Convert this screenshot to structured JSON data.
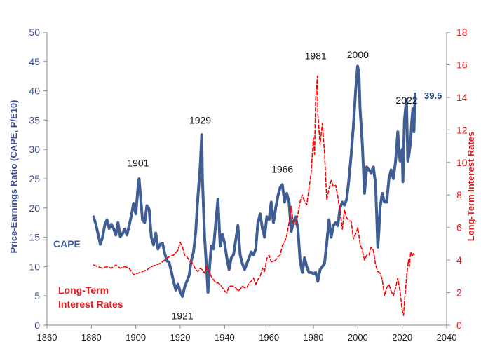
{
  "colors": {
    "cape": "#3f5e96",
    "rates": "#ff0000",
    "left_axis_text": "#3a4d99",
    "right_axis_text": "#e41a1c",
    "axis_line": "#888888",
    "last_value": "#1f3b73"
  },
  "chart_data": {
    "type": "line",
    "title": "",
    "xlabel": "",
    "ylabel_left": "Price-Earnings Ratio (CAPE, P/E10)",
    "ylabel_right": "Long-Term Interest Rates",
    "xlim": [
      1860,
      2040
    ],
    "ylim_left": [
      0,
      50
    ],
    "ylim_right": [
      0,
      18
    ],
    "grid": false,
    "x_ticks": [
      "1860",
      "1880",
      "1900",
      "1920",
      "1940",
      "1960",
      "1980",
      "2000",
      "2020",
      "2040"
    ],
    "y_left_ticks": [
      "0",
      "5",
      "10",
      "15",
      "20",
      "25",
      "30",
      "35",
      "40",
      "45",
      "50"
    ],
    "y_right_ticks": [
      "0",
      "2",
      "4",
      "6",
      "8",
      "10",
      "12",
      "14",
      "16",
      "18"
    ],
    "legend": {
      "cape_label": "CAPE",
      "rates_label_line1": "Long-Term",
      "rates_label_line2": "Interest Rates"
    },
    "annotations": [
      {
        "text": "1901",
        "x": 1901,
        "y": 27.1
      },
      {
        "text": "1929",
        "x": 1929,
        "y": 34.4
      },
      {
        "text": "1966",
        "x": 1966,
        "y": 26.0
      },
      {
        "text": "1981",
        "x": 1981,
        "y": 45.4
      },
      {
        "text": "2000",
        "x": 2000,
        "y": 45.6
      },
      {
        "text": "2022",
        "x": 2022,
        "y": 37.8
      },
      {
        "text": "1921",
        "x": 1921,
        "y": 1.0
      }
    ],
    "last_value_label": "39.5",
    "series": [
      {
        "name": "CAPE",
        "axis": "left",
        "points": [
          [
            1881,
            18.5
          ],
          [
            1882,
            17.2
          ],
          [
            1883,
            15.6
          ],
          [
            1884,
            13.8
          ],
          [
            1885,
            15.0
          ],
          [
            1886,
            17.0
          ],
          [
            1887,
            18.0
          ],
          [
            1888,
            16.5
          ],
          [
            1889,
            17.2
          ],
          [
            1890,
            16.5
          ],
          [
            1891,
            15.4
          ],
          [
            1892,
            17.5
          ],
          [
            1893,
            15.1
          ],
          [
            1894,
            15.6
          ],
          [
            1895,
            16.4
          ],
          [
            1896,
            15.4
          ],
          [
            1897,
            17.0
          ],
          [
            1898,
            18.7
          ],
          [
            1899,
            20.8
          ],
          [
            1900,
            19.0
          ],
          [
            1901,
            23.5
          ],
          [
            1901.5,
            25.0
          ],
          [
            1902,
            22.6
          ],
          [
            1903,
            18.0
          ],
          [
            1904,
            17.5
          ],
          [
            1905,
            20.4
          ],
          [
            1906,
            19.8
          ],
          [
            1907,
            15.0
          ],
          [
            1908,
            13.7
          ],
          [
            1909,
            15.7
          ],
          [
            1910,
            13.0
          ],
          [
            1911,
            13.8
          ],
          [
            1912,
            14.0
          ],
          [
            1913,
            12.3
          ],
          [
            1914,
            11.0
          ],
          [
            1915,
            10.7
          ],
          [
            1916,
            9.2
          ],
          [
            1917,
            7.5
          ],
          [
            1918,
            6.0
          ],
          [
            1919,
            7.0
          ],
          [
            1920,
            5.7
          ],
          [
            1921,
            4.9
          ],
          [
            1922,
            6.5
          ],
          [
            1923,
            7.5
          ],
          [
            1924,
            8.5
          ],
          [
            1925,
            11.0
          ],
          [
            1926,
            12.5
          ],
          [
            1927,
            16.0
          ],
          [
            1928,
            22.0
          ],
          [
            1929,
            27.0
          ],
          [
            1929.7,
            32.5
          ],
          [
            1930,
            25.0
          ],
          [
            1931,
            15.0
          ],
          [
            1932,
            9.0
          ],
          [
            1932.5,
            5.6
          ],
          [
            1933,
            8.8
          ],
          [
            1934,
            13.5
          ],
          [
            1935,
            13.0
          ],
          [
            1936,
            17.5
          ],
          [
            1937,
            21.5
          ],
          [
            1938,
            13.5
          ],
          [
            1939,
            15.5
          ],
          [
            1940,
            14.0
          ],
          [
            1941,
            11.5
          ],
          [
            1942,
            9.5
          ],
          [
            1943,
            11.5
          ],
          [
            1944,
            12.0
          ],
          [
            1945,
            14.5
          ],
          [
            1946,
            17.0
          ],
          [
            1947,
            12.0
          ],
          [
            1948,
            10.5
          ],
          [
            1949,
            9.5
          ],
          [
            1950,
            10.5
          ],
          [
            1951,
            11.5
          ],
          [
            1952,
            12.5
          ],
          [
            1953,
            12.0
          ],
          [
            1954,
            13.0
          ],
          [
            1955,
            17.5
          ],
          [
            1956,
            19.0
          ],
          [
            1957,
            16.5
          ],
          [
            1958,
            15.0
          ],
          [
            1959,
            18.5
          ],
          [
            1960,
            18.0
          ],
          [
            1961,
            21.0
          ],
          [
            1962,
            17.5
          ],
          [
            1963,
            20.0
          ],
          [
            1964,
            22.0
          ],
          [
            1965,
            23.5
          ],
          [
            1966,
            24.0
          ],
          [
            1967,
            21.0
          ],
          [
            1968,
            22.5
          ],
          [
            1969,
            21.0
          ],
          [
            1970,
            16.0
          ],
          [
            1971,
            17.5
          ],
          [
            1972,
            18.5
          ],
          [
            1973,
            16.5
          ],
          [
            1974,
            11.0
          ],
          [
            1975,
            9.0
          ],
          [
            1976,
            11.5
          ],
          [
            1977,
            10.0
          ],
          [
            1978,
            9.0
          ],
          [
            1979,
            9.0
          ],
          [
            1980,
            8.8
          ],
          [
            1981,
            9.0
          ],
          [
            1982,
            7.5
          ],
          [
            1983,
            9.5
          ],
          [
            1984,
            10.0
          ],
          [
            1985,
            10.5
          ],
          [
            1986,
            14.0
          ],
          [
            1987,
            18.0
          ],
          [
            1988,
            15.0
          ],
          [
            1989,
            17.0
          ],
          [
            1990,
            17.5
          ],
          [
            1991,
            17.0
          ],
          [
            1992,
            20.0
          ],
          [
            1993,
            21.0
          ],
          [
            1994,
            20.5
          ],
          [
            1995,
            21.5
          ],
          [
            1996,
            25.0
          ],
          [
            1997,
            29.0
          ],
          [
            1998,
            34.0
          ],
          [
            1999,
            40.0
          ],
          [
            1999.9,
            44.2
          ],
          [
            2000.5,
            43.0
          ],
          [
            2001,
            37.0
          ],
          [
            2002,
            31.0
          ],
          [
            2003,
            22.5
          ],
          [
            2004,
            27.0
          ],
          [
            2005,
            26.5
          ],
          [
            2006,
            26.0
          ],
          [
            2007,
            27.0
          ],
          [
            2008,
            24.0
          ],
          [
            2009,
            13.3
          ],
          [
            2009.5,
            16.0
          ],
          [
            2010,
            20.0
          ],
          [
            2011,
            22.5
          ],
          [
            2012,
            21.0
          ],
          [
            2013,
            21.0
          ],
          [
            2014,
            25.0
          ],
          [
            2015,
            26.5
          ],
          [
            2016,
            25.0
          ],
          [
            2017,
            28.0
          ],
          [
            2018,
            33.0
          ],
          [
            2019,
            28.0
          ],
          [
            2020,
            30.0
          ],
          [
            2020.3,
            24.5
          ],
          [
            2021,
            35.0
          ],
          [
            2021.9,
            38.5
          ],
          [
            2022.5,
            28.0
          ],
          [
            2023,
            29.0
          ],
          [
            2023.8,
            31.5
          ],
          [
            2024.3,
            35.0
          ],
          [
            2024.8,
            37.0
          ],
          [
            2025.3,
            33.0
          ],
          [
            2025.8,
            39.5
          ]
        ]
      },
      {
        "name": "Long-Term Interest Rates",
        "axis": "right",
        "points": [
          [
            1881,
            3.7
          ],
          [
            1883,
            3.6
          ],
          [
            1885,
            3.5
          ],
          [
            1887,
            3.6
          ],
          [
            1889,
            3.5
          ],
          [
            1891,
            3.7
          ],
          [
            1893,
            3.5
          ],
          [
            1895,
            3.6
          ],
          [
            1897,
            3.5
          ],
          [
            1899,
            3.1
          ],
          [
            1901,
            3.2
          ],
          [
            1903,
            3.3
          ],
          [
            1905,
            3.4
          ],
          [
            1907,
            3.6
          ],
          [
            1909,
            3.7
          ],
          [
            1911,
            3.8
          ],
          [
            1913,
            4.0
          ],
          [
            1915,
            4.2
          ],
          [
            1917,
            4.3
          ],
          [
            1919,
            4.6
          ],
          [
            1920,
            5.1
          ],
          [
            1921,
            4.8
          ],
          [
            1922,
            4.3
          ],
          [
            1923,
            4.2
          ],
          [
            1924,
            4.0
          ],
          [
            1925,
            3.9
          ],
          [
            1926,
            3.7
          ],
          [
            1927,
            3.4
          ],
          [
            1928,
            3.3
          ],
          [
            1929,
            3.5
          ],
          [
            1930,
            3.4
          ],
          [
            1931,
            3.2
          ],
          [
            1932,
            3.6
          ],
          [
            1933,
            3.3
          ],
          [
            1934,
            3.0
          ],
          [
            1935,
            2.8
          ],
          [
            1936,
            2.6
          ],
          [
            1937,
            2.6
          ],
          [
            1938,
            2.5
          ],
          [
            1939,
            2.3
          ],
          [
            1940,
            2.1
          ],
          [
            1941,
            2.0
          ],
          [
            1942,
            2.4
          ],
          [
            1943,
            2.4
          ],
          [
            1944,
            2.4
          ],
          [
            1945,
            2.3
          ],
          [
            1946,
            2.1
          ],
          [
            1947,
            2.2
          ],
          [
            1948,
            2.4
          ],
          [
            1949,
            2.3
          ],
          [
            1950,
            2.3
          ],
          [
            1951,
            2.6
          ],
          [
            1952,
            2.7
          ],
          [
            1953,
            2.9
          ],
          [
            1954,
            2.5
          ],
          [
            1955,
            2.8
          ],
          [
            1956,
            3.0
          ],
          [
            1957,
            3.5
          ],
          [
            1958,
            3.3
          ],
          [
            1959,
            4.1
          ],
          [
            1960,
            4.3
          ],
          [
            1961,
            3.9
          ],
          [
            1962,
            3.9
          ],
          [
            1963,
            4.0
          ],
          [
            1964,
            4.2
          ],
          [
            1965,
            4.3
          ],
          [
            1966,
            4.9
          ],
          [
            1967,
            5.1
          ],
          [
            1968,
            5.5
          ],
          [
            1969,
            6.3
          ],
          [
            1970,
            7.3
          ],
          [
            1971,
            6.2
          ],
          [
            1972,
            6.2
          ],
          [
            1973,
            6.8
          ],
          [
            1974,
            7.6
          ],
          [
            1975,
            8.0
          ],
          [
            1976,
            7.6
          ],
          [
            1977,
            7.4
          ],
          [
            1978,
            8.4
          ],
          [
            1979,
            9.4
          ],
          [
            1980,
            11.5
          ],
          [
            1980.5,
            10.5
          ],
          [
            1981,
            13.9
          ],
          [
            1981.8,
            15.3
          ],
          [
            1982,
            13.0
          ],
          [
            1983,
            11.1
          ],
          [
            1984,
            12.4
          ],
          [
            1985,
            10.6
          ],
          [
            1986,
            7.7
          ],
          [
            1987,
            8.4
          ],
          [
            1988,
            8.9
          ],
          [
            1989,
            8.5
          ],
          [
            1990,
            8.6
          ],
          [
            1991,
            7.9
          ],
          [
            1992,
            7.0
          ],
          [
            1993,
            5.9
          ],
          [
            1994,
            7.1
          ],
          [
            1995,
            6.6
          ],
          [
            1996,
            6.4
          ],
          [
            1997,
            6.4
          ],
          [
            1998,
            5.3
          ],
          [
            1999,
            5.6
          ],
          [
            2000,
            6.0
          ],
          [
            2001,
            5.0
          ],
          [
            2002,
            4.6
          ],
          [
            2003,
            4.0
          ],
          [
            2004,
            4.3
          ],
          [
            2005,
            4.3
          ],
          [
            2006,
            4.8
          ],
          [
            2007,
            4.6
          ],
          [
            2008,
            3.7
          ],
          [
            2009,
            3.3
          ],
          [
            2010,
            3.2
          ],
          [
            2011,
            2.8
          ],
          [
            2012,
            1.8
          ],
          [
            2013,
            2.3
          ],
          [
            2014,
            2.5
          ],
          [
            2015,
            2.1
          ],
          [
            2016,
            1.8
          ],
          [
            2017,
            2.3
          ],
          [
            2018,
            2.9
          ],
          [
            2019,
            2.1
          ],
          [
            2020,
            0.9
          ],
          [
            2020.6,
            0.6
          ],
          [
            2021,
            1.4
          ],
          [
            2022,
            3.0
          ],
          [
            2022.8,
            4.0
          ],
          [
            2023.2,
            3.6
          ],
          [
            2023.8,
            4.5
          ],
          [
            2024.5,
            4.2
          ],
          [
            2025,
            4.4
          ],
          [
            2025.8,
            4.3
          ]
        ]
      }
    ]
  }
}
